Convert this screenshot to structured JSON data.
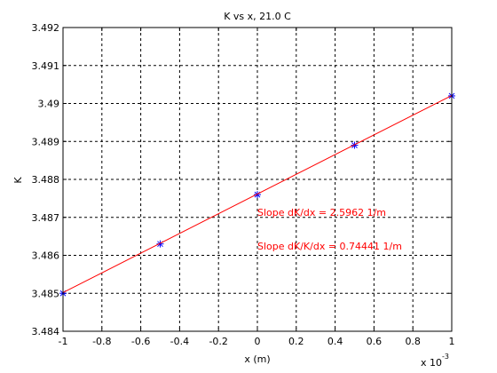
{
  "chart_data": {
    "type": "scatter",
    "title": "K vs x, 21.0 C",
    "xlabel": "x (m)",
    "ylabel": "K",
    "x_multiplier_label": "x 10",
    "x_multiplier_exponent": "-3",
    "xlim": [
      -0.001,
      0.001
    ],
    "ylim": [
      3.484,
      3.492
    ],
    "x_ticks": [
      -0.001,
      -0.0008,
      -0.0006,
      -0.0004,
      -0.0002,
      0,
      0.0002,
      0.0004,
      0.0006,
      0.0008,
      0.001
    ],
    "x_tick_labels": [
      "-1",
      "-0.8",
      "-0.6",
      "-0.4",
      "-0.2",
      "0",
      "0.2",
      "0.4",
      "0.6",
      "0.8",
      "1"
    ],
    "y_ticks": [
      3.484,
      3.485,
      3.486,
      3.487,
      3.488,
      3.489,
      3.49,
      3.491,
      3.492
    ],
    "y_tick_labels": [
      "3.484",
      "3.485",
      "3.486",
      "3.487",
      "3.488",
      "3.489",
      "3.49",
      "3.491",
      "3.492"
    ],
    "grid": true,
    "series": [
      {
        "marker": "*",
        "color": "#0000ff",
        "x": [
          -0.001,
          -0.0005,
          0,
          0.0005,
          0.001
        ],
        "y": [
          3.485,
          3.4863,
          3.4876,
          3.4889,
          3.4902
        ]
      },
      {
        "marker": "line",
        "color": "#ff0000",
        "x": [
          -0.001,
          0.001
        ],
        "y": [
          3.48502,
          3.49021
        ]
      }
    ],
    "annotations": [
      {
        "text": "Slope dK/dx = 2.5962 1/m",
        "x": 0,
        "y": 3.487,
        "color": "#ff0000"
      },
      {
        "text": "Slope dK/K/dx = 0.74441 1/m",
        "x": 0,
        "y": 3.4861,
        "color": "#ff0000"
      }
    ]
  }
}
